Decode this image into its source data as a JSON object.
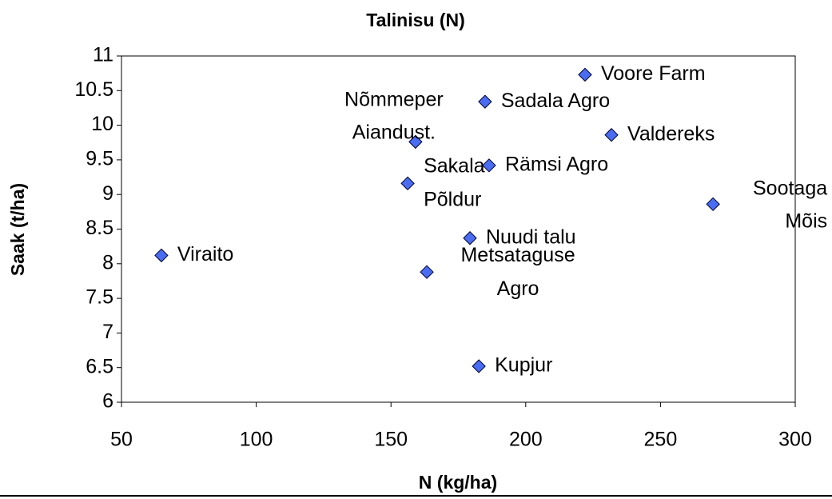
{
  "chart_data": {
    "type": "scatter",
    "title": "Talinisu (N)",
    "x_label": "N (kg/ha)",
    "y_label": "Saak (t/ha)",
    "series": [
      {
        "color": "#4a6cf0",
        "x": [
          64.8,
          163.3,
          182.6,
          179.3,
          156.2,
          159.1,
          186.4,
          184.9,
          222,
          231.8,
          269.5
        ],
        "values": [
          8.12,
          7.88,
          6.52,
          8.37,
          9.16,
          9.76,
          9.42,
          10.34,
          10.73,
          9.86,
          8.86
        ],
        "point_labels": [
          "Viraito",
          "Metsataguse Agro",
          "Kupjur",
          "Nuudi talu",
          "Sakala Põldur",
          "Nõmmeper Aiandust.",
          "Rämsi Agro",
          "Sadala Agro",
          "Voore Farm",
          "Valdereks",
          "Sootaga Mõis"
        ]
      }
    ],
    "xlim": [
      50,
      300
    ],
    "xticks": [
      50,
      100,
      150,
      200,
      250,
      300
    ],
    "ylim": [
      6,
      11
    ],
    "yticks": [
      6,
      6.5,
      7,
      7.5,
      8,
      8.5,
      9,
      9.5,
      10,
      10.5,
      11
    ],
    "grid": false
  }
}
